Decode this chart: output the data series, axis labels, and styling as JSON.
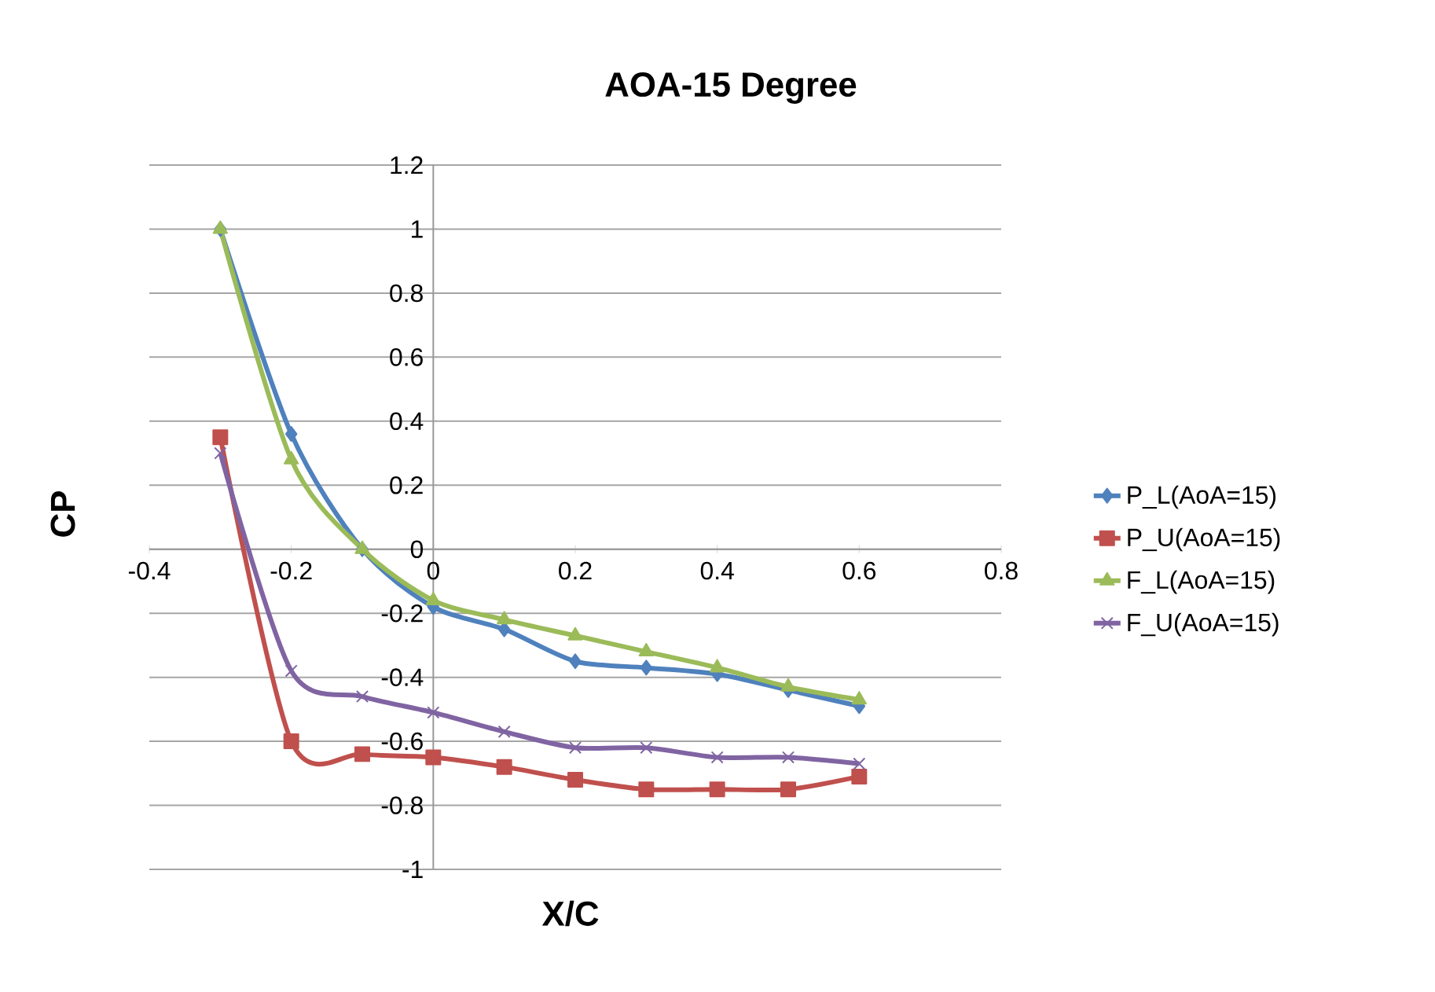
{
  "chart_data": {
    "type": "line",
    "title": "AOA-15 Degree",
    "xlabel": "X/C",
    "ylabel": "CP",
    "x": [
      -0.3,
      -0.2,
      -0.1,
      0,
      0.1,
      0.2,
      0.3,
      0.4,
      0.5,
      0.6
    ],
    "series": [
      {
        "name": "P_L(AoA=15)",
        "color": "#4f81bd",
        "marker": "diamond",
        "values": [
          1.0,
          0.36,
          0.0,
          -0.18,
          -0.25,
          -0.35,
          -0.37,
          -0.39,
          -0.44,
          -0.49
        ]
      },
      {
        "name": "P_U(AoA=15)",
        "color": "#c0504d",
        "marker": "square",
        "values": [
          0.35,
          -0.6,
          -0.64,
          -0.65,
          -0.68,
          -0.72,
          -0.75,
          -0.75,
          -0.75,
          -0.71
        ]
      },
      {
        "name": "F_L(AoA=15)",
        "color": "#9bbb59",
        "marker": "triangle",
        "values": [
          1.0,
          0.28,
          0.0,
          -0.16,
          -0.22,
          -0.27,
          -0.32,
          -0.37,
          -0.43,
          -0.47
        ]
      },
      {
        "name": "F_U(AoA=15)",
        "color": "#8064a2",
        "marker": "cross",
        "values": [
          0.3,
          -0.38,
          -0.46,
          -0.51,
          -0.57,
          -0.62,
          -0.62,
          -0.65,
          -0.65,
          -0.67
        ]
      }
    ],
    "xlim": [
      -0.4,
      0.8
    ],
    "xticks": [
      -0.4,
      -0.2,
      0,
      0.2,
      0.4,
      0.6,
      0.8
    ],
    "ylim": [
      -1,
      1.2
    ],
    "yticks": [
      -1,
      -0.8,
      -0.6,
      -0.4,
      -0.2,
      0,
      0.2,
      0.4,
      0.6,
      0.8,
      1,
      1.2
    ],
    "grid": "y",
    "legend": "right",
    "line_style": "solid"
  }
}
